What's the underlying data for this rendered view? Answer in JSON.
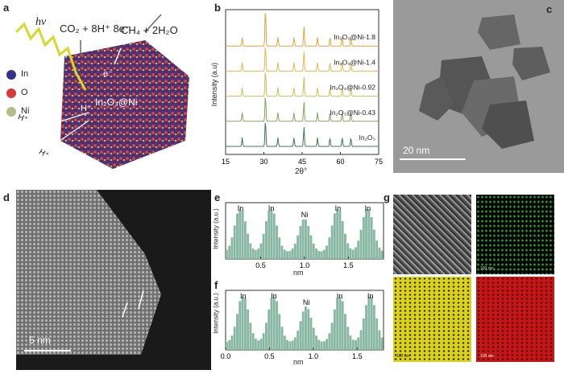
{
  "panels": {
    "a": {
      "label": "a",
      "photon": "hν",
      "reaction_in": "CO₂ + 8H⁺ 8e⁻",
      "reaction_out": "CH₄ + 2H₂O",
      "electron": "e⁻",
      "proton": "H⁺",
      "proton2": "H⁺",
      "proton3": "H⁺",
      "material": "In₂O₃@Ni",
      "legend": [
        "In",
        "O",
        "Ni"
      ],
      "colors": {
        "In": "#33338f",
        "O": "#d63a3a",
        "Ni": "#b9b98a"
      }
    },
    "b": {
      "label": "b"
    },
    "c": {
      "label": "c",
      "scale": "20 nm"
    },
    "d": {
      "label": "d",
      "scale": "5 nm"
    },
    "e": {
      "label": "e"
    },
    "f": {
      "label": "f"
    },
    "g": {
      "label": "g",
      "tile_labels": [
        "100 nm",
        "100 nm",
        "100 nm"
      ]
    }
  },
  "chart_data": [
    {
      "id": "b",
      "type": "line",
      "xlabel": "2θ°",
      "ylabel": "Intensity (a.u)",
      "xlim": [
        15,
        75
      ],
      "xticks": [
        15,
        30,
        45,
        60,
        75
      ],
      "series": [
        {
          "name": "In₂O₃@Ni-1.8",
          "color": "#e8a13a"
        },
        {
          "name": "In₂O₃@Ni-1.4",
          "color": "#e8b84a"
        },
        {
          "name": "In₂O₃@Ni-0.92",
          "color": "#cdbf55"
        },
        {
          "name": "In₂O₃@Ni-0.43",
          "color": "#7fa85a"
        },
        {
          "name": "In₂O₃",
          "color": "#3c7a55"
        }
      ],
      "peaks": [
        21.5,
        30.6,
        35.5,
        41.8,
        45.7,
        51.0,
        55.9,
        60.7,
        64.1
      ]
    },
    {
      "id": "e",
      "type": "bar",
      "xlabel": "nm",
      "ylabel": "Intensity (a.u.)",
      "xlim": [
        0.1,
        1.9
      ],
      "xticks": [
        0.5,
        1.0,
        1.5
      ],
      "peak_labels": [
        {
          "x": 0.27,
          "text": "In"
        },
        {
          "x": 0.62,
          "text": "In"
        },
        {
          "x": 1.0,
          "text": "Ni"
        },
        {
          "x": 1.38,
          "text": "In"
        },
        {
          "x": 1.72,
          "text": "In"
        }
      ]
    },
    {
      "id": "f",
      "type": "bar",
      "xlabel": "nm",
      "ylabel": "Intensity (a.u.)",
      "xlim": [
        0.0,
        1.8
      ],
      "xticks": [
        0.0,
        0.5,
        1.0,
        1.5
      ],
      "peak_labels": [
        {
          "x": 0.2,
          "text": "In"
        },
        {
          "x": 0.55,
          "text": "In"
        },
        {
          "x": 0.92,
          "text": "Ni"
        },
        {
          "x": 1.3,
          "text": "In"
        },
        {
          "x": 1.65,
          "text": "In"
        }
      ]
    }
  ]
}
